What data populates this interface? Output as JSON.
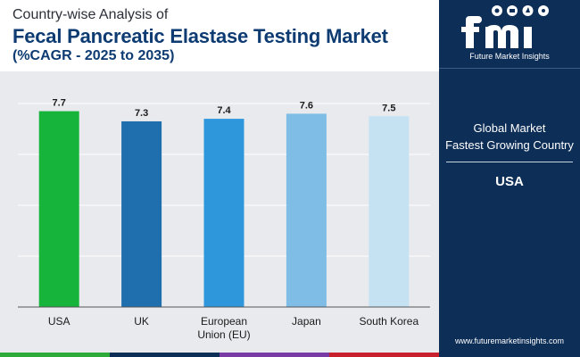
{
  "header": {
    "line1": "Country-wise Analysis of",
    "line2": "Fecal Pancreatic Elastase Testing Market",
    "line3": "(%CAGR - 2025 to 2035)"
  },
  "logo": {
    "text": "Future Market Insights"
  },
  "sidebar": {
    "label_line1": "Global Market",
    "label_line2": "Fastest Growing Country",
    "country": "USA",
    "url": "www.futuremarketinsights.com"
  },
  "colors": {
    "sidebar_bg": "#0d2e57",
    "title_blue": "#0d3b72",
    "chart_bg": "#e9eaee",
    "stripe": [
      "#2eaa3a",
      "#0d2e57",
      "#7a3aa5",
      "#c8202d"
    ]
  },
  "chart_data": {
    "type": "bar",
    "categories": [
      "USA",
      "UK",
      "European\nUnion (EU)",
      "Japan",
      "South Korea"
    ],
    "values": [
      7.7,
      7.3,
      7.4,
      7.6,
      7.5
    ],
    "data_labels": [
      "7.7",
      "7.3",
      "7.4",
      "7.6",
      "7.5"
    ],
    "bar_colors": [
      "#16b43b",
      "#1f6fae",
      "#2e97dc",
      "#7fbde6",
      "#c5e2f3"
    ],
    "ylim": [
      0,
      8
    ],
    "grid": true,
    "legend": "none",
    "title": "",
    "xlabel": "",
    "ylabel": ""
  }
}
